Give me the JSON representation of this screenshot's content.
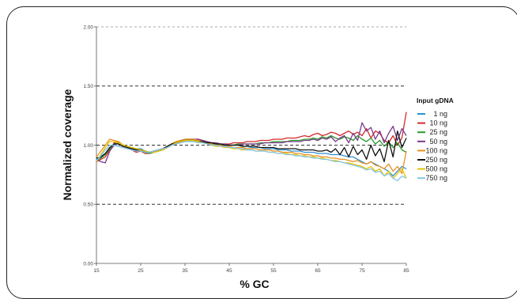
{
  "chart_data": {
    "type": "line",
    "xlabel": "% GC",
    "ylabel": "Normalized coverage",
    "xlim": [
      15,
      85
    ],
    "ylim": [
      0.0,
      2.0
    ],
    "x_ticks": [
      "15",
      "25",
      "35",
      "45",
      "55",
      "65",
      "75",
      "85"
    ],
    "y_ticks": [
      "0.00",
      "0.50",
      "1.00",
      "1.50",
      "2.00"
    ],
    "reference_lines": [
      0.5,
      1.0,
      1.5,
      2.0
    ],
    "legend": {
      "title": "Input gDNA",
      "position": "right"
    },
    "x": [
      15,
      16,
      17,
      18,
      19,
      20,
      21,
      22,
      23,
      24,
      25,
      26,
      27,
      28,
      29,
      30,
      31,
      32,
      33,
      34,
      35,
      36,
      37,
      38,
      39,
      40,
      41,
      42,
      43,
      44,
      45,
      46,
      47,
      48,
      49,
      50,
      51,
      52,
      53,
      54,
      55,
      56,
      57,
      58,
      59,
      60,
      61,
      62,
      63,
      64,
      65,
      66,
      67,
      68,
      69,
      70,
      71,
      72,
      73,
      74,
      75,
      76,
      77,
      78,
      79,
      80,
      81,
      82,
      83,
      84,
      85
    ],
    "series": [
      {
        "name": "1 ng",
        "color": "#2e8fd0",
        "values": [
          0.88,
          0.9,
          0.93,
          0.97,
          1.0,
          1.02,
          1.0,
          0.99,
          0.98,
          0.97,
          0.97,
          0.95,
          0.94,
          0.95,
          0.96,
          0.97,
          0.98,
          1.0,
          1.01,
          1.03,
          1.04,
          1.04,
          1.04,
          1.04,
          1.03,
          1.02,
          1.02,
          1.01,
          1.01,
          1.0,
          1.0,
          1.0,
          1.0,
          0.99,
          0.99,
          0.98,
          0.98,
          0.98,
          0.97,
          0.97,
          0.97,
          0.96,
          0.96,
          0.96,
          0.95,
          0.95,
          0.95,
          0.94,
          0.94,
          0.94,
          0.93,
          0.93,
          0.93,
          0.92,
          0.92,
          0.92,
          0.91,
          0.9,
          0.9,
          0.88,
          0.86,
          0.84,
          0.86,
          0.84,
          0.82,
          0.8,
          0.78,
          0.74,
          0.78,
          0.82,
          0.8
        ]
      },
      {
        "name": "10 ng",
        "color": "#d42a2a",
        "values": [
          0.86,
          0.88,
          0.9,
          0.96,
          1.02,
          1.03,
          1.0,
          0.98,
          0.96,
          0.94,
          0.95,
          0.93,
          0.93,
          0.94,
          0.95,
          0.96,
          0.98,
          1.0,
          1.01,
          1.03,
          1.04,
          1.05,
          1.05,
          1.05,
          1.04,
          1.03,
          1.02,
          1.02,
          1.01,
          1.01,
          1.01,
          1.02,
          1.02,
          1.02,
          1.03,
          1.03,
          1.03,
          1.04,
          1.04,
          1.04,
          1.05,
          1.05,
          1.05,
          1.06,
          1.06,
          1.06,
          1.07,
          1.08,
          1.07,
          1.09,
          1.1,
          1.08,
          1.09,
          1.11,
          1.1,
          1.08,
          1.1,
          1.12,
          1.09,
          1.11,
          1.08,
          1.14,
          1.06,
          1.12,
          1.1,
          1.04,
          1.02,
          1.08,
          1.0,
          1.06,
          1.28
        ]
      },
      {
        "name": "25 ng",
        "color": "#2a9a2a",
        "values": [
          0.87,
          0.89,
          0.92,
          0.97,
          1.01,
          1.02,
          1.0,
          0.98,
          0.97,
          0.96,
          0.96,
          0.94,
          0.93,
          0.94,
          0.95,
          0.97,
          0.99,
          1.01,
          1.03,
          1.04,
          1.05,
          1.05,
          1.05,
          1.04,
          1.03,
          1.02,
          1.01,
          1.01,
          1.0,
          1.0,
          1.0,
          1.0,
          1.01,
          1.01,
          1.01,
          1.01,
          1.01,
          1.02,
          1.02,
          1.02,
          1.03,
          1.03,
          1.03,
          1.03,
          1.04,
          1.04,
          1.04,
          1.05,
          1.05,
          1.06,
          1.05,
          1.07,
          1.06,
          1.08,
          1.06,
          1.05,
          1.07,
          1.06,
          1.04,
          1.08,
          1.05,
          1.03,
          1.06,
          1.01,
          1.04,
          0.99,
          1.03,
          0.98,
          1.02,
          0.96,
          0.94
        ]
      },
      {
        "name": "50 ng",
        "color": "#7a3a8c",
        "values": [
          0.88,
          0.86,
          0.85,
          0.95,
          1.0,
          0.99,
          0.98,
          0.97,
          0.96,
          0.95,
          0.95,
          0.94,
          0.94,
          0.95,
          0.96,
          0.97,
          0.98,
          1.0,
          1.02,
          1.03,
          1.04,
          1.05,
          1.05,
          1.05,
          1.04,
          1.03,
          1.02,
          1.02,
          1.01,
          1.01,
          1.0,
          1.0,
          1.0,
          1.01,
          1.01,
          1.01,
          1.01,
          1.01,
          1.02,
          1.02,
          1.02,
          1.02,
          1.02,
          1.03,
          1.03,
          1.03,
          1.03,
          1.04,
          1.04,
          1.05,
          1.04,
          1.06,
          1.05,
          1.07,
          1.03,
          1.06,
          1.08,
          1.02,
          1.1,
          1.04,
          1.19,
          1.12,
          1.15,
          1.05,
          1.12,
          1.02,
          1.1,
          1.16,
          1.04,
          1.14,
          1.08
        ]
      },
      {
        "name": "100 ng",
        "color": "#e8901e",
        "values": [
          0.9,
          0.95,
          1.0,
          1.05,
          1.04,
          1.03,
          1.0,
          0.99,
          0.98,
          0.97,
          0.96,
          0.95,
          0.94,
          0.94,
          0.95,
          0.97,
          0.99,
          1.01,
          1.03,
          1.04,
          1.05,
          1.05,
          1.05,
          1.04,
          1.03,
          1.02,
          1.01,
          1.0,
          1.0,
          0.99,
          0.99,
          0.98,
          0.98,
          0.98,
          0.97,
          0.97,
          0.97,
          0.96,
          0.96,
          0.96,
          0.95,
          0.95,
          0.94,
          0.94,
          0.94,
          0.93,
          0.93,
          0.92,
          0.92,
          0.91,
          0.91,
          0.9,
          0.9,
          0.89,
          0.89,
          0.88,
          0.88,
          0.87,
          0.86,
          0.87,
          0.85,
          0.84,
          0.86,
          0.83,
          0.82,
          0.8,
          0.84,
          0.78,
          0.82,
          0.76,
          0.95
        ]
      },
      {
        "name": "250 ng",
        "color": "#111111",
        "values": [
          0.89,
          0.9,
          0.93,
          0.98,
          1.01,
          1.01,
          0.99,
          0.98,
          0.97,
          0.96,
          0.96,
          0.95,
          0.94,
          0.95,
          0.96,
          0.97,
          0.99,
          1.01,
          1.02,
          1.03,
          1.04,
          1.04,
          1.04,
          1.03,
          1.03,
          1.02,
          1.02,
          1.01,
          1.01,
          1.0,
          1.0,
          1.0,
          1.0,
          0.99,
          0.99,
          0.99,
          0.99,
          0.98,
          0.98,
          0.98,
          0.98,
          0.97,
          0.97,
          0.97,
          0.97,
          0.97,
          0.96,
          0.96,
          0.96,
          0.96,
          0.95,
          0.95,
          0.96,
          0.94,
          0.97,
          0.92,
          0.98,
          0.9,
          0.99,
          0.92,
          0.96,
          0.88,
          1.0,
          0.91,
          0.97,
          0.86,
          1.04,
          0.9,
          1.12,
          0.98,
          1.06
        ]
      },
      {
        "name": "500 ng",
        "color": "#e6c300",
        "values": [
          0.86,
          0.92,
          0.98,
          1.03,
          1.03,
          1.02,
          1.0,
          0.99,
          0.98,
          0.97,
          0.96,
          0.95,
          0.94,
          0.94,
          0.95,
          0.96,
          0.98,
          1.0,
          1.02,
          1.03,
          1.04,
          1.04,
          1.04,
          1.03,
          1.02,
          1.01,
          1.0,
          0.99,
          0.99,
          0.98,
          0.98,
          0.97,
          0.97,
          0.96,
          0.96,
          0.96,
          0.95,
          0.95,
          0.95,
          0.94,
          0.94,
          0.93,
          0.93,
          0.93,
          0.92,
          0.92,
          0.91,
          0.91,
          0.9,
          0.9,
          0.89,
          0.89,
          0.88,
          0.87,
          0.87,
          0.86,
          0.85,
          0.85,
          0.84,
          0.83,
          0.82,
          0.8,
          0.82,
          0.78,
          0.8,
          0.74,
          0.78,
          0.72,
          0.76,
          0.8,
          0.72
        ]
      },
      {
        "name": "750 ng",
        "color": "#7fc6ea",
        "values": [
          0.87,
          0.91,
          0.96,
          1.0,
          1.0,
          0.99,
          0.98,
          0.97,
          0.96,
          0.95,
          0.95,
          0.94,
          0.94,
          0.95,
          0.96,
          0.97,
          0.98,
          1.0,
          1.01,
          1.02,
          1.03,
          1.03,
          1.03,
          1.02,
          1.02,
          1.01,
          1.0,
          1.0,
          0.99,
          0.99,
          0.98,
          0.98,
          0.97,
          0.97,
          0.96,
          0.96,
          0.95,
          0.95,
          0.95,
          0.94,
          0.94,
          0.93,
          0.93,
          0.92,
          0.92,
          0.91,
          0.91,
          0.9,
          0.9,
          0.89,
          0.89,
          0.88,
          0.88,
          0.87,
          0.86,
          0.86,
          0.85,
          0.84,
          0.83,
          0.82,
          0.81,
          0.79,
          0.8,
          0.77,
          0.78,
          0.74,
          0.76,
          0.72,
          0.7,
          0.74,
          0.72
        ]
      }
    ]
  }
}
